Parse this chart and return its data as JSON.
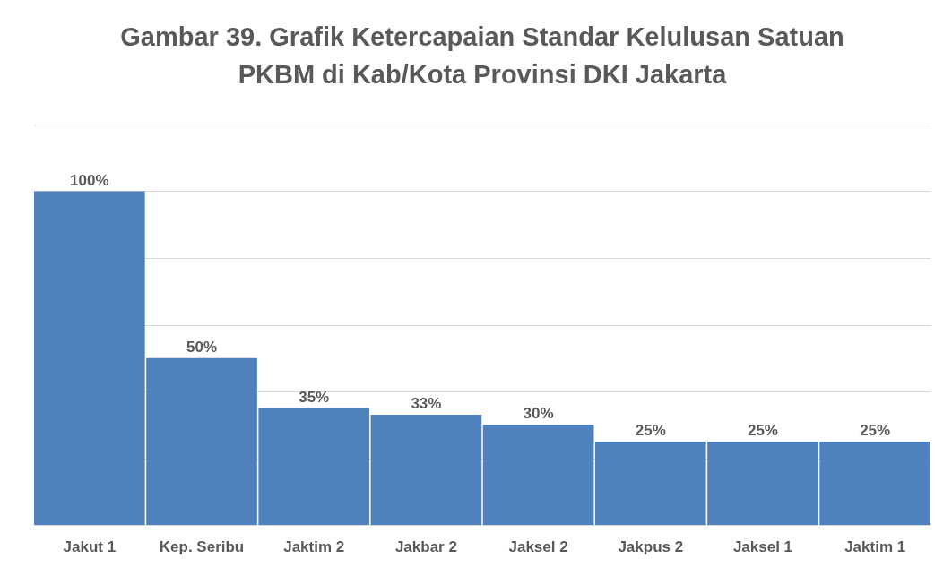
{
  "chart_data": {
    "type": "bar",
    "title": "Gambar 39.  Grafik Ketercapaian Standar Kelulusan Satuan\nPKBM di Kab/Kota Provinsi DKI Jakarta",
    "categories": [
      "Jakut 1",
      "Kep. Seribu",
      "Jaktim 2",
      "Jakbar 2",
      "Jaksel 2",
      "Jakpus 2",
      "Jaksel 1",
      "Jaktim 1"
    ],
    "values": [
      100,
      50,
      35,
      33,
      30,
      25,
      25,
      25
    ],
    "value_labels": [
      "100%",
      "50%",
      "35%",
      "33%",
      "30%",
      "25%",
      "25%",
      "25%"
    ],
    "color": "#4f81bd",
    "ylim": [
      0,
      120
    ],
    "yticks": [
      {
        "value": 0,
        "label": null
      },
      {
        "value": 20,
        "label": null
      },
      {
        "value": 40,
        "label": null
      },
      {
        "value": 60,
        "label": null
      },
      {
        "value": 80,
        "label": null
      },
      {
        "value": 100,
        "label": null
      },
      {
        "value": 120,
        "label": null
      }
    ],
    "grid": "y",
    "tick_labels": "x"
  }
}
